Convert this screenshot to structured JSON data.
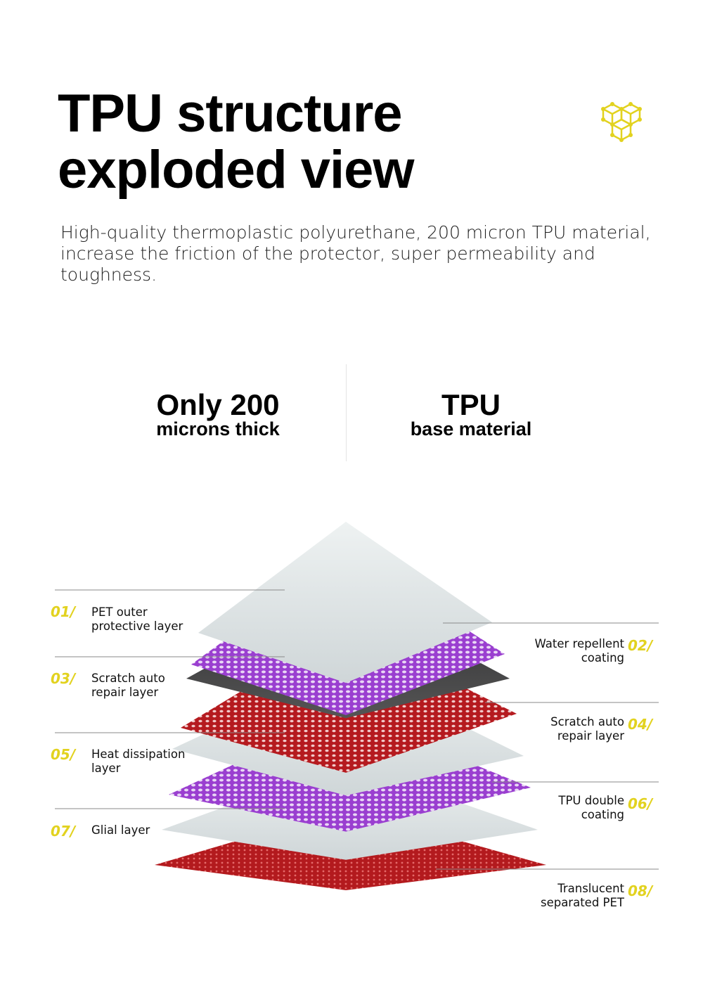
{
  "header": {
    "title_line1": "TPU structure",
    "title_line2": "exploded view",
    "icon": "cubes-icon",
    "icon_color": "#e2d21f"
  },
  "description": "High-quality thermoplastic polyurethane, 200 micron TPU material, increase the friction of the protector, super permeability and toughness.",
  "stats": [
    {
      "big": "Only 200",
      "small": "microns thick"
    },
    {
      "big": "TPU",
      "small": "base material"
    }
  ],
  "layers": [
    {
      "num": "01/",
      "label": "PET outer protective layer",
      "side": "left"
    },
    {
      "num": "02/",
      "label": "Water repellent coating",
      "side": "right"
    },
    {
      "num": "03/",
      "label": "Scratch auto repair layer",
      "side": "left"
    },
    {
      "num": "04/",
      "label": "Scratch auto repair layer",
      "side": "right"
    },
    {
      "num": "05/",
      "label": "Heat dissipation layer",
      "side": "left"
    },
    {
      "num": "06/",
      "label": "TPU double coating",
      "side": "right"
    },
    {
      "num": "07/",
      "label": "Glial layer",
      "side": "left"
    },
    {
      "num": "08/",
      "label": "Translucent separated PET",
      "side": "right"
    }
  ],
  "colors": {
    "accent": "#e2d21f",
    "purple": "#9a3fd0",
    "red": "#b51a1f",
    "film": "#dfe5e6"
  }
}
